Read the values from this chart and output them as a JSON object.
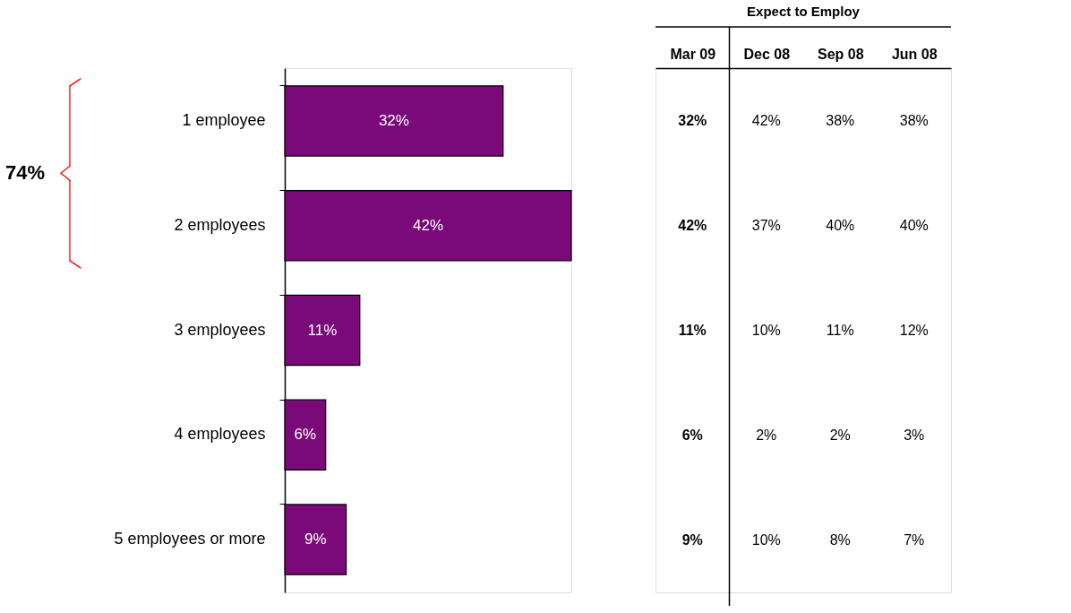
{
  "chart_data": [
    {
      "type": "bar",
      "orientation": "horizontal",
      "categories": [
        "1 employee",
        "2 employees",
        "3 employees",
        "4 employees",
        "5 employees or more"
      ],
      "values": [
        32,
        42,
        11,
        6,
        9
      ],
      "value_labels": [
        "32%",
        "42%",
        "11%",
        "6%",
        "9%"
      ],
      "color": "#7a0a7a",
      "annotations": [
        "74%"
      ],
      "legend": false,
      "grid": false
    },
    {
      "type": "heatmap",
      "title": "Expect to Employ",
      "categories": [
        "Mar 09",
        "Dec 08",
        "Sep 08",
        "Jun 08"
      ],
      "y_categories": [
        null,
        null,
        null,
        null,
        null
      ],
      "cells": [
        [
          32,
          42,
          38,
          38
        ],
        [
          42,
          37,
          40,
          40
        ],
        [
          11,
          10,
          11,
          12
        ],
        [
          6,
          2,
          2,
          3
        ],
        [
          9,
          10,
          8,
          7
        ]
      ],
      "cell_labels": [
        [
          "32%",
          "42%",
          "38%",
          "38%"
        ],
        [
          "42%",
          "37%",
          "40%",
          "40%"
        ],
        [
          "11%",
          "10%",
          "11%",
          "12%"
        ],
        [
          "6%",
          "2%",
          "2%",
          "3%"
        ],
        [
          "9%",
          "10%",
          "8%",
          "7%"
        ]
      ]
    }
  ]
}
